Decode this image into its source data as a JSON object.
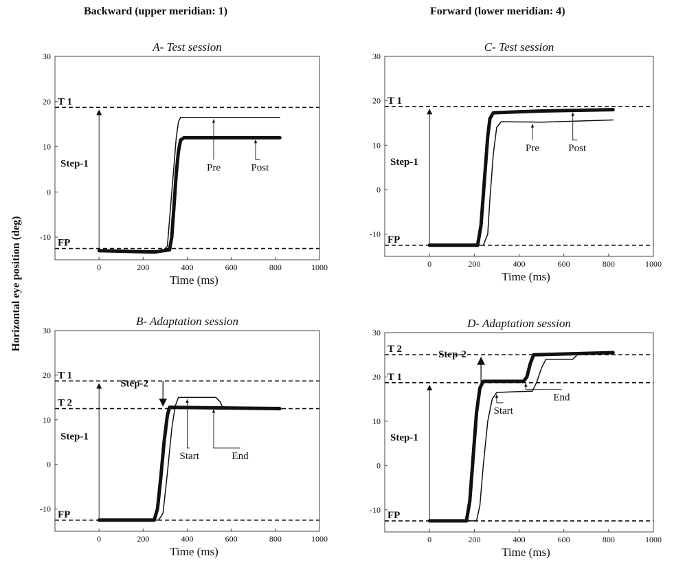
{
  "column_titles": {
    "left": "Backward (upper meridian: 1)",
    "right": "Forward (lower meridian: 4)"
  },
  "y_axis_label": "Horizontal eye position (deg)",
  "chart_data": [
    {
      "id": "A",
      "type": "line",
      "title": "A- Test session",
      "xlabel": "Time (ms)",
      "xlim": [
        -200,
        1000
      ],
      "ylim": [
        -15,
        30
      ],
      "xticks": [
        0,
        200,
        400,
        600,
        800,
        1000
      ],
      "yticks": [
        -10,
        0,
        10,
        20,
        30
      ],
      "ref_lines": [
        {
          "label": "T 1",
          "y": 18.7
        },
        {
          "label": "FP",
          "y": -12.5
        }
      ],
      "steps": [
        {
          "label": "Step-1",
          "x": 0,
          "from": -12.5,
          "to": 18.7
        }
      ],
      "series": [
        {
          "name": "Pre",
          "weight": "thin",
          "x": [
            0,
            290,
            310,
            320,
            340,
            350,
            360,
            370,
            820
          ],
          "y": [
            -13,
            -13,
            -12,
            -6,
            6,
            12,
            15.5,
            16.5,
            16.5
          ]
        },
        {
          "name": "Post",
          "weight": "thick",
          "x": [
            0,
            250,
            320,
            330,
            340,
            350,
            360,
            370,
            385,
            820
          ],
          "y": [
            -13,
            -13.3,
            -12.8,
            -10,
            -3,
            4,
            9,
            11.5,
            12,
            12
          ]
        }
      ],
      "annotations": [
        {
          "text": "Pre",
          "label_x": 520,
          "label_y": 5,
          "arrow_to": [
            520,
            16.5
          ]
        },
        {
          "text": "Post",
          "label_x": 730,
          "label_y": 5,
          "arrow_to": [
            710,
            12
          ]
        }
      ]
    },
    {
      "id": "B",
      "type": "line",
      "title": "B- Adaptation session",
      "xlabel": "Time (ms)",
      "xlim": [
        -200,
        1000
      ],
      "ylim": [
        -15,
        30
      ],
      "xticks": [
        0,
        200,
        400,
        600,
        800,
        1000
      ],
      "yticks": [
        -10,
        0,
        10,
        20,
        30
      ],
      "ref_lines": [
        {
          "label": "T 1",
          "y": 18.7
        },
        {
          "label": "T 2",
          "y": 12.5
        },
        {
          "label": "FP",
          "y": -12.5
        }
      ],
      "steps": [
        {
          "label": "Step-1",
          "x": 0,
          "from": -12.5,
          "to": 18.7
        },
        {
          "label": "Step-2",
          "x": 290,
          "from": 18.7,
          "to": 12.5
        }
      ],
      "series": [
        {
          "name": "Start",
          "weight": "thin",
          "x": [
            0,
            270,
            290,
            310,
            330,
            345,
            360,
            530,
            550,
            560,
            820
          ],
          "y": [
            -12.5,
            -12.5,
            -11,
            -2,
            8,
            13,
            15,
            15,
            14,
            12.8,
            12.8
          ]
        },
        {
          "name": "End",
          "weight": "thick",
          "x": [
            0,
            250,
            265,
            280,
            295,
            310,
            320,
            820
          ],
          "y": [
            -12.5,
            -12.5,
            -10,
            -3,
            5,
            11,
            12.8,
            12.5
          ]
        }
      ],
      "annotations": [
        {
          "text": "Start",
          "label_x": 410,
          "label_y": 1.5,
          "arrow_to": [
            400,
            15
          ]
        },
        {
          "text": "End",
          "label_x": 640,
          "label_y": 1.5,
          "arrow_to": [
            520,
            12.8
          ]
        }
      ]
    },
    {
      "id": "C",
      "type": "line",
      "title": "C- Test session",
      "xlabel": "Time (ms)",
      "xlim": [
        -200,
        1000
      ],
      "ylim": [
        -15,
        30
      ],
      "xticks": [
        0,
        200,
        400,
        600,
        800,
        1000
      ],
      "yticks": [
        -10,
        0,
        10,
        20,
        30
      ],
      "ref_lines": [
        {
          "label": "T 1",
          "y": 18.7
        },
        {
          "label": "FP",
          "y": -12.5
        }
      ],
      "steps": [
        {
          "label": "Step-1",
          "x": 0,
          "from": -12.5,
          "to": 18.7
        }
      ],
      "series": [
        {
          "name": "Pre",
          "weight": "thin",
          "x": [
            0,
            240,
            260,
            270,
            285,
            300,
            320,
            500,
            820
          ],
          "y": [
            -12.5,
            -12.5,
            -10,
            -2,
            8,
            14,
            15.3,
            15.2,
            15.7
          ]
        },
        {
          "name": "Post",
          "weight": "thick",
          "x": [
            0,
            215,
            230,
            245,
            260,
            270,
            285,
            500,
            820
          ],
          "y": [
            -12.5,
            -12.5,
            -8,
            2,
            12,
            16,
            17.3,
            17.7,
            18
          ]
        }
      ],
      "annotations": [
        {
          "text": "Pre",
          "label_x": 460,
          "label_y": 9,
          "arrow_to": [
            460,
            15.2
          ]
        },
        {
          "text": "Post",
          "label_x": 660,
          "label_y": 9,
          "arrow_to": [
            640,
            17.8
          ]
        }
      ]
    },
    {
      "id": "D",
      "type": "line",
      "title": "D- Adaptation session",
      "xlabel": "Time (ms)",
      "xlim": [
        -200,
        1000
      ],
      "ylim": [
        -15,
        30
      ],
      "xticks": [
        0,
        200,
        400,
        600,
        800,
        1000
      ],
      "yticks": [
        -10,
        0,
        10,
        20,
        30
      ],
      "ref_lines": [
        {
          "label": "T 2",
          "y": 25
        },
        {
          "label": "T 1",
          "y": 18.7
        },
        {
          "label": "FP",
          "y": -12.5
        }
      ],
      "steps": [
        {
          "label": "Step-1",
          "x": 0,
          "from": -12.5,
          "to": 18.7
        },
        {
          "label": "Step-2",
          "x": 230,
          "from": 18.7,
          "to": 25
        }
      ],
      "series": [
        {
          "name": "Start",
          "weight": "thin",
          "x": [
            0,
            210,
            225,
            240,
            260,
            280,
            300,
            460,
            480,
            500,
            520,
            640,
            660,
            820
          ],
          "y": [
            -12.5,
            -12.5,
            -9,
            0,
            10,
            15,
            16.5,
            16.8,
            19,
            22,
            24,
            24,
            25,
            25.3
          ]
        },
        {
          "name": "End",
          "weight": "thick",
          "x": [
            0,
            165,
            180,
            195,
            210,
            225,
            240,
            420,
            435,
            450,
            465,
            820
          ],
          "y": [
            -12.5,
            -12.5,
            -8,
            2,
            12,
            17.5,
            19,
            19,
            20,
            23,
            25,
            25.5
          ]
        }
      ],
      "annotations": [
        {
          "text": "Start",
          "label_x": 330,
          "label_y": 12,
          "arrow_to": [
            300,
            16.5
          ]
        },
        {
          "text": "End",
          "label_x": 590,
          "label_y": 15,
          "arrow_to": [
            430,
            19
          ]
        }
      ]
    }
  ]
}
